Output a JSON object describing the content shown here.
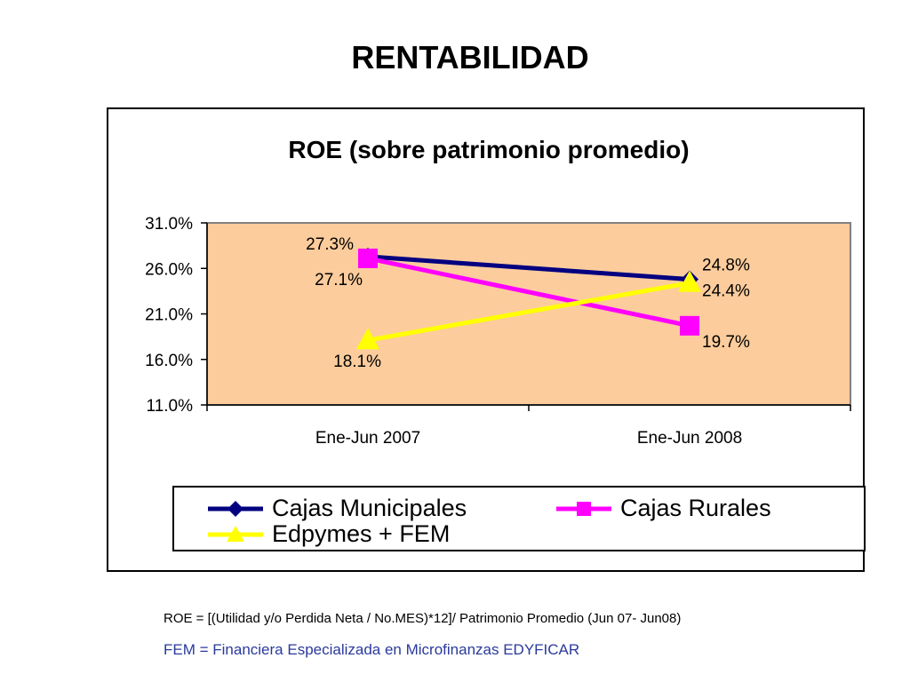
{
  "slide": {
    "title": "RENTABILIDAD",
    "footnote_formula": "ROE = [(Utilidad y/o Perdida Neta / No.MES)*12]/ Patrimonio Promedio (Jun 07- Jun08)",
    "footnote_fem": "FEM = Financiera Especializada en Microfinanzas EDYFICAR"
  },
  "chart_data": {
    "type": "line",
    "title": "ROE (sobre patrimonio promedio)",
    "xlabel": "",
    "ylabel": "",
    "categories": [
      "Ene-Jun 2007",
      "Ene-Jun 2008"
    ],
    "ylim": [
      11.0,
      31.0
    ],
    "yticks": [
      11.0,
      16.0,
      21.0,
      26.0,
      31.0
    ],
    "ytick_labels": [
      "11.0%",
      "16.0%",
      "21.0%",
      "26.0%",
      "31.0%"
    ],
    "plot_background": "#fccc9c",
    "legend_position": "bottom",
    "series": [
      {
        "name": "Cajas Municipales",
        "values": [
          27.3,
          24.8
        ],
        "labels": [
          "27.3%",
          "24.8%"
        ],
        "color": "#000080",
        "marker": "diamond"
      },
      {
        "name": "Cajas Rurales",
        "values": [
          27.1,
          19.7
        ],
        "labels": [
          "27.1%",
          "19.7%"
        ],
        "color": "#ff00ff",
        "marker": "square"
      },
      {
        "name": "Edpymes + FEM",
        "values": [
          18.1,
          24.4
        ],
        "labels": [
          "18.1%",
          "24.4%"
        ],
        "color": "#ffff00",
        "marker": "triangle"
      }
    ]
  }
}
